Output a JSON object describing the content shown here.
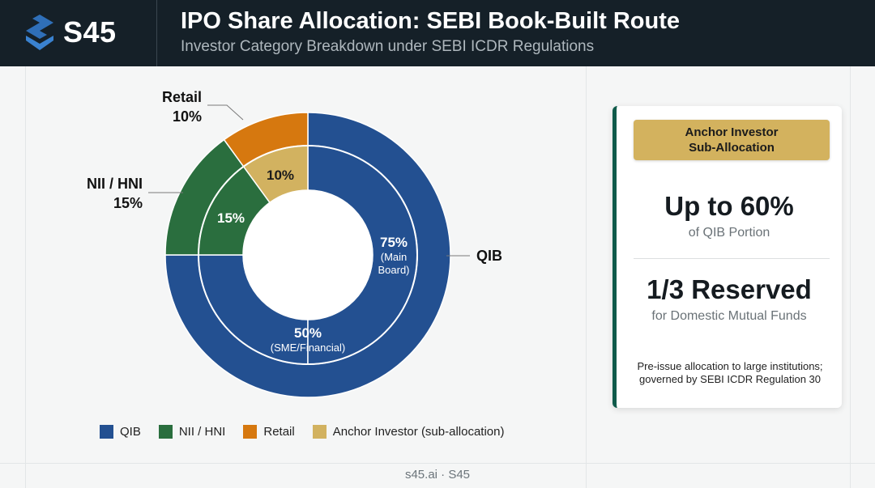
{
  "brand": {
    "name": "S45"
  },
  "header": {
    "title": "IPO Share Allocation: SEBI Book-Built Route",
    "subtitle": "Investor Category Breakdown under SEBI ICDR Regulations"
  },
  "chart_data": {
    "type": "donut",
    "colors": {
      "qib": "#235091",
      "nii": "#2a6e3e",
      "retail": "#d6780f",
      "anchor": "#d2b260"
    },
    "outer_ring": {
      "series_name": "Main Board",
      "slices": [
        {
          "key": "qib",
          "label": "QIB",
          "value": 75,
          "color": "#235091"
        },
        {
          "key": "nii",
          "label": "NII / HNI",
          "value": 15,
          "color": "#2a6e3e"
        },
        {
          "key": "retail",
          "label": "Retail",
          "value": 10,
          "color": "#d6780f"
        }
      ],
      "callouts": [
        {
          "key": "qib",
          "text": "QIB"
        },
        {
          "key": "nii",
          "text": "NII / HNI",
          "value_text": "15%"
        },
        {
          "key": "retail",
          "text": "Retail",
          "value_text": "10%"
        }
      ]
    },
    "inner_ring": {
      "series_name": "SME/Financial",
      "slices": [
        {
          "key": "qib",
          "label": "QIB",
          "value": 50,
          "color": "#235091"
        },
        {
          "key": "nii",
          "label": "NII / HNI",
          "value": 15,
          "color": "#2a6e3e"
        },
        {
          "key": "anchor",
          "label": "Anchor Investor (sub-allocation)",
          "value": 10,
          "color": "#d2b260"
        }
      ],
      "labels": [
        {
          "key": "anchor",
          "text": "10%"
        },
        {
          "key": "nii",
          "text": "15%"
        },
        {
          "key": "qib_main",
          "text": "75%",
          "sub": [
            "(Main",
            "Board)"
          ]
        },
        {
          "key": "qib_sme",
          "text": "50%",
          "sub": [
            "(SME/Financial)"
          ]
        }
      ]
    },
    "legend": [
      {
        "label": "QIB",
        "color": "#235091"
      },
      {
        "label": "NII / HNI",
        "color": "#2a6e3e"
      },
      {
        "label": "Retail",
        "color": "#d6780f"
      },
      {
        "label": "Anchor Investor (sub-allocation)",
        "color": "#d2b260"
      }
    ]
  },
  "card": {
    "badge_line1": "Anchor Investor",
    "badge_line2": "Sub-Allocation",
    "stat1": "Up to 60%",
    "stat1_sub": "of QIB Portion",
    "stat2": "1/3 Reserved",
    "stat2_sub": "for Domestic Mutual Funds",
    "note_line1": "Pre-issue allocation to large institutions;",
    "note_line2": "governed by SEBI ICDR Regulation 30",
    "accent_color": "#0f5a4a"
  },
  "footer": {
    "text": "s45.ai · S45"
  }
}
